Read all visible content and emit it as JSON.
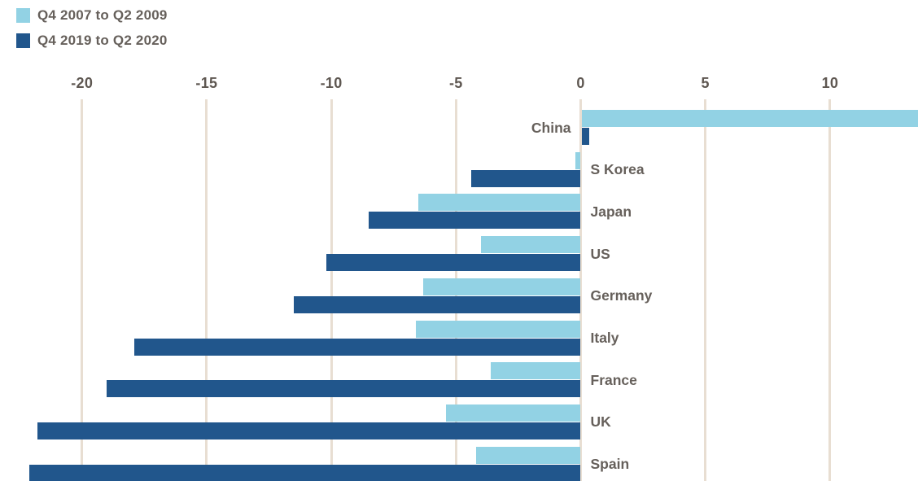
{
  "chart_data": {
    "type": "bar",
    "orientation": "horizontal",
    "title": "",
    "categories": [
      "China",
      "S Korea",
      "Japan",
      "US",
      "Germany",
      "Italy",
      "France",
      "UK",
      "Spain"
    ],
    "series": [
      {
        "name": "Q4 2007 to Q2 2009",
        "color": "#92d2e4",
        "values": [
          13.5,
          -0.2,
          -6.5,
          -4.0,
          -6.3,
          -6.6,
          -3.6,
          -5.4,
          -4.2
        ]
      },
      {
        "name": "Q4 2019 to Q2 2020",
        "color": "#21568c",
        "values": [
          0.3,
          -4.4,
          -8.5,
          -10.2,
          -11.5,
          -17.9,
          -19.0,
          -21.8,
          -22.1
        ]
      }
    ],
    "x_ticks": [
      -20,
      -15,
      -10,
      -5,
      0,
      5,
      10
    ],
    "x_tick_labels": [
      "-20",
      "-15",
      "-10",
      "-5",
      "0",
      "5",
      "10"
    ],
    "xlim": [
      -22.4,
      13.6
    ],
    "grid": true,
    "legend_position": "top-left",
    "xlabel": "",
    "ylabel": ""
  },
  "legend": {
    "items": [
      {
        "label": "Q4 2007 to Q2 2009",
        "color": "#92d2e4"
      },
      {
        "label": "Q4 2019 to Q2 2020",
        "color": "#21568c"
      }
    ]
  },
  "colors": {
    "series_1": "#92d2e4",
    "series_2": "#21568c",
    "gridline": "#e8ded2",
    "text": "#66605b",
    "background": "#ffffff"
  }
}
